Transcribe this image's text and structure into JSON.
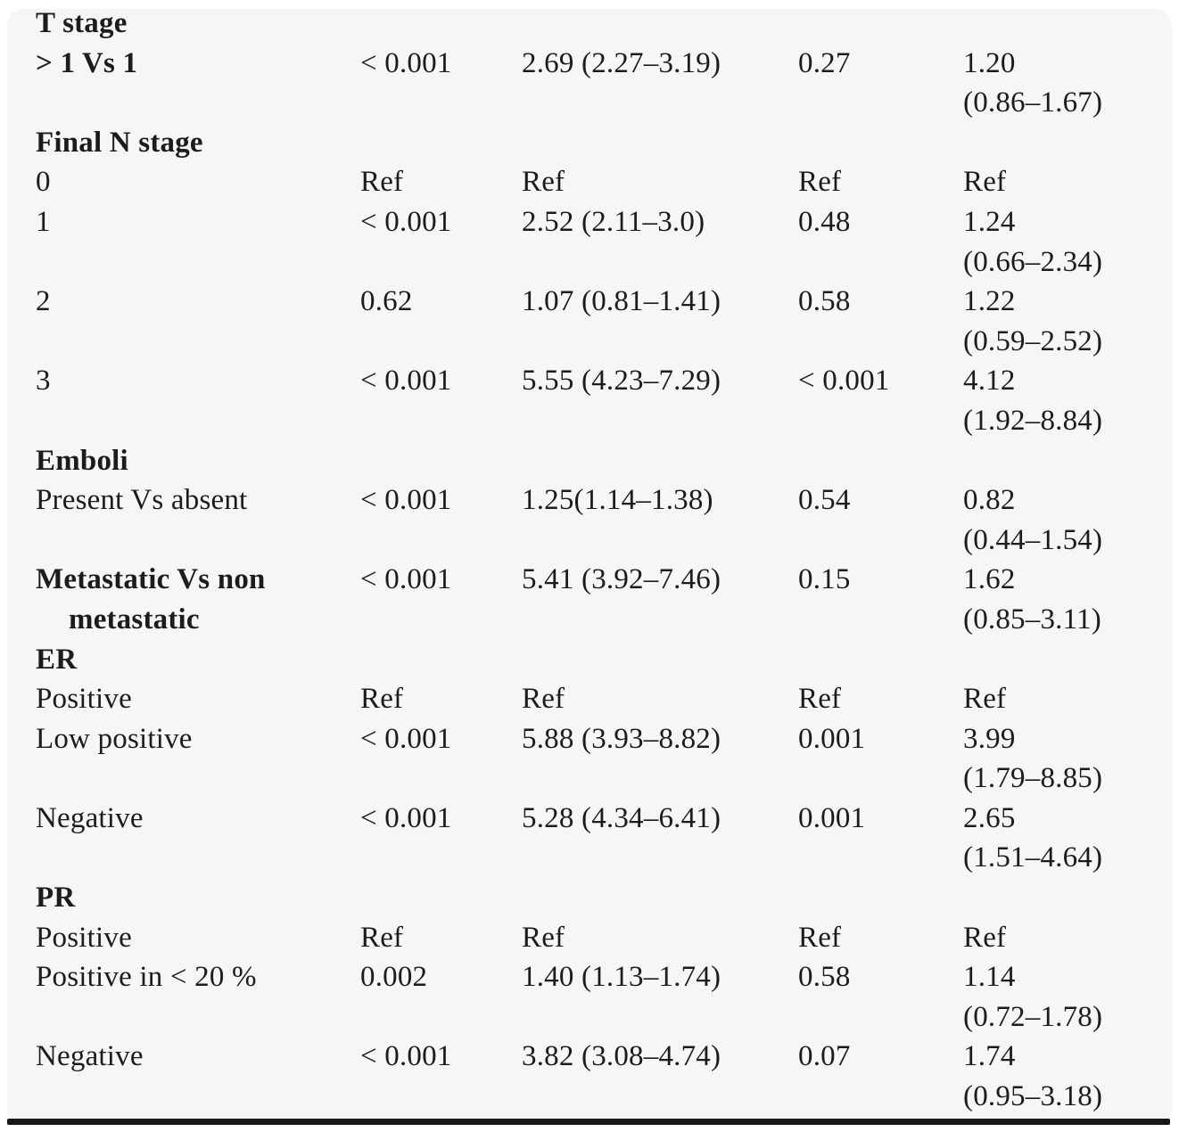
{
  "page": {
    "background_color": "#ffffff",
    "panel_background_color": "#f5f6f7",
    "text_color": "#1c1c1e",
    "rule_color": "#191919"
  },
  "table": {
    "description": "Regression results table fragment: variable, univariable p value, univariable estimate (95% CI), multivariable p value, multivariable estimate (95% CI)",
    "columns": [
      "variable",
      "univariable-p-value",
      "univariable-estimate-ci",
      "multivariable-p-value",
      "multivariable-estimate-ci"
    ],
    "rows": [
      {
        "type": "group",
        "label": "T stage"
      },
      {
        "type": "data",
        "bold": true,
        "label": "> 1 Vs 1",
        "p1": "< 0.001",
        "est1": "2.69 (2.27–3.19)",
        "p2": "0.27",
        "est2": "1.20",
        "ci2": "(0.86–1.67)"
      },
      {
        "type": "group",
        "label": "Final N stage"
      },
      {
        "type": "data",
        "label": "0",
        "p1": "Ref",
        "est1": "Ref",
        "p2": "Ref",
        "est2": "Ref"
      },
      {
        "type": "data",
        "label": "1",
        "p1": "< 0.001",
        "est1": "2.52 (2.11–3.0)",
        "p2": "0.48",
        "est2": "1.24",
        "ci2": "(0.66–2.34)"
      },
      {
        "type": "data",
        "label": "2",
        "p1": "0.62",
        "est1": "1.07 (0.81–1.41)",
        "p2": "0.58",
        "est2": "1.22",
        "ci2": "(0.59–2.52)"
      },
      {
        "type": "data",
        "label": "3",
        "p1": "< 0.001",
        "est1": "5.55 (4.23–7.29)",
        "p2": "< 0.001",
        "est2": "4.12",
        "ci2": "(1.92–8.84)"
      },
      {
        "type": "group",
        "label": "Emboli"
      },
      {
        "type": "data",
        "label": "Present Vs absent",
        "p1": "< 0.001",
        "est1": "1.25(1.14–1.38)",
        "p2": "0.54",
        "est2": "0.82",
        "ci2": "(0.44–1.54)"
      },
      {
        "type": "data",
        "bold": true,
        "label": "Metastatic Vs non",
        "label2": "metastatic",
        "p1": "< 0.001",
        "est1": "5.41 (3.92–7.46)",
        "p2": "0.15",
        "est2": "1.62",
        "ci2": "(0.85–3.11)"
      },
      {
        "type": "group",
        "label": "ER"
      },
      {
        "type": "data",
        "label": "Positive",
        "p1": "Ref",
        "est1": "Ref",
        "p2": "Ref",
        "est2": "Ref"
      },
      {
        "type": "data",
        "label": "Low positive",
        "p1": "< 0.001",
        "est1": "5.88 (3.93–8.82)",
        "p2": "0.001",
        "est2": "3.99",
        "ci2": "(1.79–8.85)"
      },
      {
        "type": "data",
        "label": "Negative",
        "p1": "< 0.001",
        "est1": "5.28 (4.34–6.41)",
        "p2": "0.001",
        "est2": "2.65",
        "ci2": "(1.51–4.64)"
      },
      {
        "type": "group",
        "label": "PR"
      },
      {
        "type": "data",
        "label": "Positive",
        "p1": "Ref",
        "est1": "Ref",
        "p2": "Ref",
        "est2": "Ref"
      },
      {
        "type": "data",
        "label": "Positive in < 20 %",
        "p1": "0.002",
        "est1": "1.40 (1.13–1.74)",
        "p2": "0.58",
        "est2": "1.14",
        "ci2": "(0.72–1.78)"
      },
      {
        "type": "data",
        "label": "Negative",
        "p1": "< 0.001",
        "est1": "3.82 (3.08–4.74)",
        "p2": "0.07",
        "est2": "1.74",
        "ci2": "(0.95–3.18)"
      }
    ]
  }
}
